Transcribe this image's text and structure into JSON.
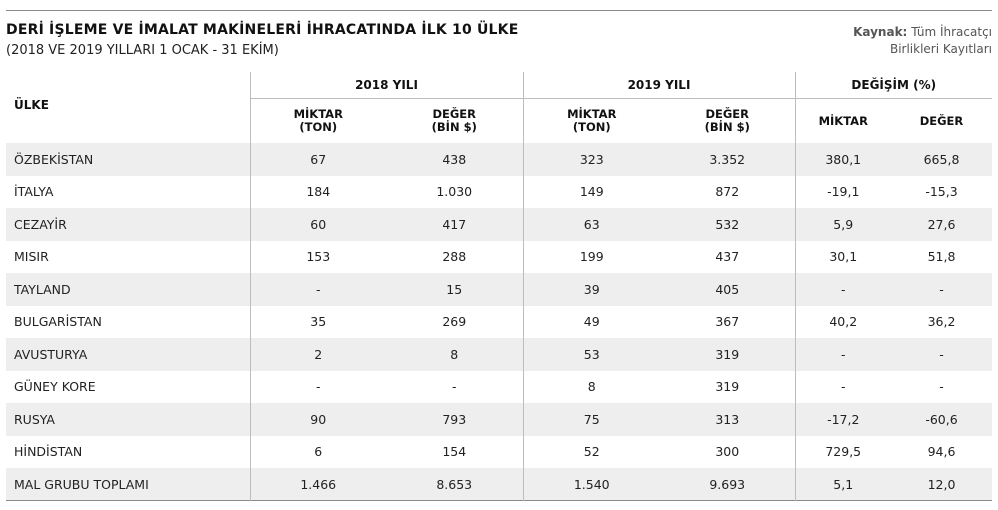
{
  "header": {
    "title": "DERİ İŞLEME VE İMALAT MAKİNELERİ İHRACATINDA İLK 10 ÜLKE",
    "subtitle": "(2018 VE 2019 YILLARI 1 OCAK - 31 EKİM)",
    "source_label": "Kaynak:",
    "source_line1": "Tüm İhracatçı",
    "source_line2": "Birlikleri Kayıtları"
  },
  "table": {
    "country_header": "ÜLKE",
    "groups": [
      "2018 YILI",
      "2019 YILI",
      "DEĞİŞİM (%)"
    ],
    "sub_headers": [
      [
        "MİKTAR",
        "(TON)"
      ],
      [
        "DEĞER",
        "(BİN $)"
      ],
      [
        "MİKTAR",
        "(TON)"
      ],
      [
        "DEĞER",
        "(BİN $)"
      ],
      [
        "MİKTAR"
      ],
      [
        "DEĞER"
      ]
    ],
    "rows": [
      [
        "ÖZBEKİSTAN",
        "67",
        "438",
        "323",
        "3.352",
        "380,1",
        "665,8"
      ],
      [
        "İTALYA",
        "184",
        "1.030",
        "149",
        "872",
        "-19,1",
        "-15,3"
      ],
      [
        "CEZAYİR",
        "60",
        "417",
        "63",
        "532",
        "5,9",
        "27,6"
      ],
      [
        "MISIR",
        "153",
        "288",
        "199",
        "437",
        "30,1",
        "51,8"
      ],
      [
        "TAYLAND",
        "-",
        "15",
        "39",
        "405",
        "-",
        "-"
      ],
      [
        "BULGARİSTAN",
        "35",
        "269",
        "49",
        "367",
        "40,2",
        "36,2"
      ],
      [
        "AVUSTURYA",
        "2",
        "8",
        "53",
        "319",
        "-",
        "-"
      ],
      [
        "GÜNEY KORE",
        "-",
        "-",
        "8",
        "319",
        "-",
        "-"
      ],
      [
        "RUSYA",
        "90",
        "793",
        "75",
        "313",
        "-17,2",
        "-60,6"
      ],
      [
        "HİNDİSTAN",
        "6",
        "154",
        "52",
        "300",
        "729,5",
        "94,6"
      ],
      [
        "MAL GRUBU TOPLAMI",
        "1.466",
        "8.653",
        "1.540",
        "9.693",
        "5,1",
        "12,0"
      ]
    ]
  },
  "colors": {
    "shade": "#eeeeee",
    "rule": "#8a8a8a",
    "divider": "#bdbdbd"
  }
}
